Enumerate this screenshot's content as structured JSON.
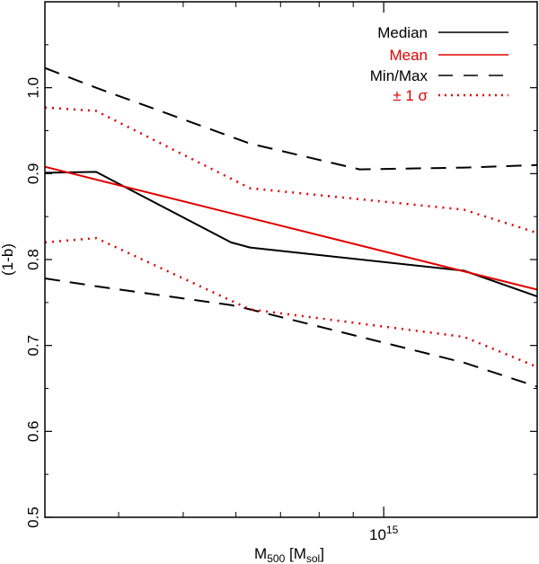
{
  "chart_data": {
    "type": "line",
    "title": "",
    "xlabel": {
      "main": "M",
      "sub1": "500",
      "mid": " [M",
      "sub2": "sol",
      "end": "]"
    },
    "ylabel": "(1-b)",
    "xscale": "log",
    "xlim": [
      310000000000000.0,
      1700000000000000.0
    ],
    "ylim": [
      0.5,
      1.1
    ],
    "y_ticks": [
      0.5,
      0.6,
      0.7,
      0.8,
      0.9,
      1.0
    ],
    "y_tick_labels": [
      "0.5",
      "0.6",
      "0.7",
      "0.8",
      "0.9",
      "1.0"
    ],
    "x_major_ticks": [
      1000000000000000.0
    ],
    "x_major_tick_labels": [
      {
        "base": "10",
        "exp": "15"
      }
    ],
    "x_minor_ticks": [
      400000000000000.0,
      500000000000000.0,
      600000000000000.0,
      700000000000000.0,
      800000000000000.0,
      900000000000000.0
    ],
    "colors": {
      "black": "#000000",
      "red": "#e00000"
    },
    "legend": {
      "position": "top-right",
      "entries": [
        {
          "label": "Median",
          "color": "#000000",
          "style": "solid"
        },
        {
          "label": "Mean",
          "color": "#e00000",
          "style": "solid"
        },
        {
          "label": "Min/Max",
          "color": "#000000",
          "style": "dashed"
        },
        {
          "label": "± 1 σ",
          "color": "#e00000",
          "style": "dotted"
        }
      ]
    },
    "series": [
      {
        "name": "Median",
        "color": "#000000",
        "style": "solid",
        "x": [
          310000000000000.0,
          370000000000000.0,
          590000000000000.0,
          630000000000000.0,
          1320000000000000.0,
          1700000000000000.0
        ],
        "y": [
          0.901,
          0.902,
          0.82,
          0.814,
          0.787,
          0.757
        ]
      },
      {
        "name": "Mean",
        "color": "#e00000",
        "style": "solid",
        "x": [
          310000000000000.0,
          1700000000000000.0
        ],
        "y": [
          0.908,
          0.765
        ]
      },
      {
        "name": "Max",
        "color": "#000000",
        "style": "dashed",
        "x": [
          310000000000000.0,
          370000000000000.0,
          630000000000000.0,
          920000000000000.0,
          1320000000000000.0,
          1700000000000000.0
        ],
        "y": [
          1.023,
          1.0,
          0.935,
          0.905,
          0.907,
          0.91
        ]
      },
      {
        "name": "Min",
        "color": "#000000",
        "style": "dashed",
        "x": [
          310000000000000.0,
          370000000000000.0,
          590000000000000.0,
          630000000000000.0,
          1320000000000000.0,
          1700000000000000.0
        ],
        "y": [
          0.778,
          0.769,
          0.747,
          0.742,
          0.68,
          0.652
        ]
      },
      {
        "name": "+1 sigma",
        "color": "#e00000",
        "style": "dotted",
        "x": [
          310000000000000.0,
          370000000000000.0,
          630000000000000.0,
          1320000000000000.0,
          1700000000000000.0
        ],
        "y": [
          0.977,
          0.973,
          0.883,
          0.858,
          0.831
        ]
      },
      {
        "name": "-1 sigma",
        "color": "#e00000",
        "style": "dotted",
        "x": [
          310000000000000.0,
          370000000000000.0,
          630000000000000.0,
          1320000000000000.0,
          1700000000000000.0
        ],
        "y": [
          0.82,
          0.825,
          0.742,
          0.71,
          0.675
        ]
      }
    ]
  }
}
